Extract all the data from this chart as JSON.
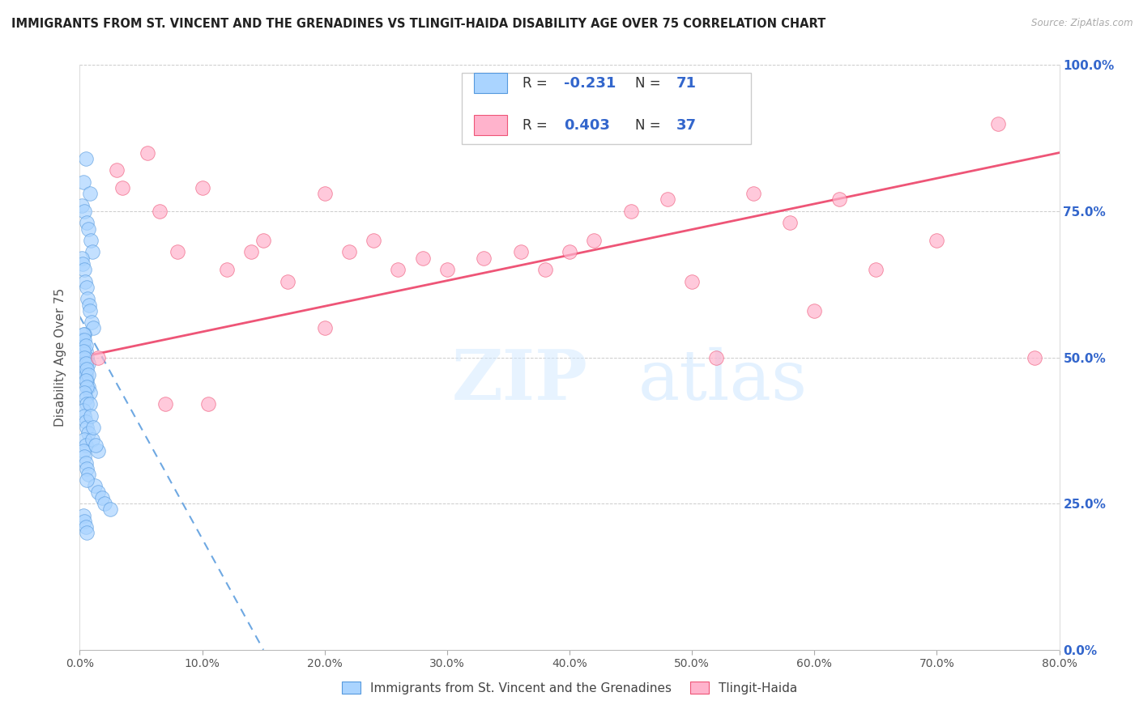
{
  "title": "IMMIGRANTS FROM ST. VINCENT AND THE GRENADINES VS TLINGIT-HAIDA DISABILITY AGE OVER 75 CORRELATION CHART",
  "source": "Source: ZipAtlas.com",
  "ylabel": "Disability Age Over 75",
  "legend_label_1": "Immigrants from St. Vincent and the Grenadines",
  "legend_label_2": "Tlingit-Haida",
  "R1": -0.231,
  "N1": 71,
  "R2": 0.403,
  "N2": 37,
  "color1": "#aad4ff",
  "color2": "#ffb3cc",
  "trendline1_color": "#5599dd",
  "trendline2_color": "#ee5577",
  "xlim": [
    0.0,
    80.0
  ],
  "ylim": [
    0.0,
    100.0
  ],
  "xticks": [
    0.0,
    10.0,
    20.0,
    30.0,
    40.0,
    50.0,
    60.0,
    70.0,
    80.0
  ],
  "yticks": [
    0.0,
    25.0,
    50.0,
    75.0,
    100.0
  ],
  "watermark_zip": "ZIP",
  "watermark_atlas": "atlas",
  "blue_x": [
    0.5,
    0.3,
    0.8,
    0.2,
    0.4,
    0.6,
    0.7,
    0.9,
    1.0,
    0.15,
    0.25,
    0.35,
    0.45,
    0.55,
    0.65,
    0.75,
    0.85,
    0.95,
    1.1,
    0.4,
    0.2,
    0.3,
    0.5,
    0.6,
    0.7,
    0.4,
    0.5,
    0.6,
    0.7,
    0.8,
    0.3,
    0.4,
    0.5,
    0.3,
    0.4,
    0.5,
    0.6,
    0.7,
    0.5,
    0.6,
    0.4,
    0.5,
    0.6,
    0.3,
    0.4,
    0.5,
    0.6,
    0.7,
    0.4,
    0.5,
    0.3,
    0.4,
    0.5,
    0.6,
    0.7,
    1.2,
    1.5,
    1.8,
    2.0,
    2.5,
    0.3,
    0.4,
    0.5,
    0.6,
    1.0,
    1.5,
    0.8,
    0.9,
    1.1,
    1.3,
    0.6
  ],
  "blue_y": [
    84,
    80,
    78,
    76,
    75,
    73,
    72,
    70,
    68,
    67,
    66,
    65,
    63,
    62,
    60,
    59,
    58,
    56,
    55,
    54,
    53,
    52,
    51,
    50,
    49,
    48,
    47,
    46,
    45,
    44,
    54,
    53,
    52,
    51,
    50,
    49,
    48,
    47,
    46,
    45,
    44,
    43,
    42,
    41,
    40,
    39,
    38,
    37,
    36,
    35,
    34,
    33,
    32,
    31,
    30,
    28,
    27,
    26,
    25,
    24,
    23,
    22,
    21,
    20,
    36,
    34,
    42,
    40,
    38,
    35,
    29
  ],
  "pink_x": [
    1.5,
    3.0,
    3.5,
    5.5,
    6.5,
    8.0,
    10.0,
    12.0,
    14.0,
    15.0,
    17.0,
    20.0,
    22.0,
    24.0,
    26.0,
    28.0,
    30.0,
    33.0,
    36.0,
    38.0,
    40.0,
    42.0,
    45.0,
    48.0,
    50.0,
    52.0,
    55.0,
    58.0,
    60.0,
    62.0,
    65.0,
    70.0,
    75.0,
    78.0,
    7.0,
    10.5,
    20.0
  ],
  "pink_y": [
    50,
    82,
    79,
    85,
    75,
    68,
    79,
    65,
    68,
    70,
    63,
    78,
    68,
    70,
    65,
    67,
    65,
    67,
    68,
    65,
    68,
    70,
    75,
    77,
    63,
    50,
    78,
    73,
    58,
    77,
    65,
    70,
    90,
    50,
    42,
    42,
    55
  ],
  "trendline1_x0": 0.0,
  "trendline1_y0": 57.0,
  "trendline1_x1": 15.0,
  "trendline1_y1": 0.0,
  "trendline2_x0": 0.0,
  "trendline2_y0": 50.0,
  "trendline2_x1": 80.0,
  "trendline2_y1": 85.0
}
